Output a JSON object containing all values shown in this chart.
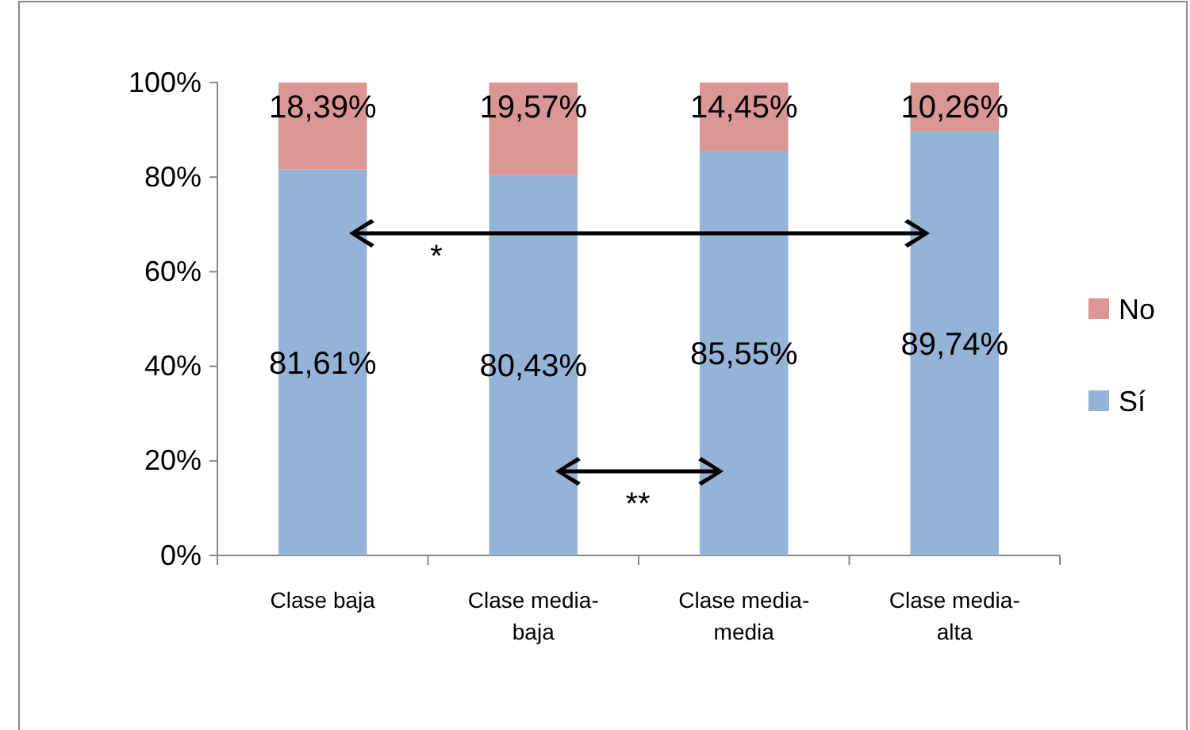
{
  "chart_data": {
    "type": "bar",
    "stacked": true,
    "categories": [
      "Clase baja",
      "Clase media-baja",
      "Clase media-media",
      "Clase media-alta"
    ],
    "series": [
      {
        "name": "Sí",
        "color": "#95b3d7",
        "values": [
          81.61,
          80.43,
          85.55,
          89.74
        ],
        "value_labels": [
          "81,61%",
          "80,43%",
          "85,55%",
          "89,74%"
        ]
      },
      {
        "name": "No",
        "color": "#d99694",
        "values": [
          18.39,
          19.57,
          14.45,
          10.26
        ],
        "value_labels": [
          "18,39%",
          "19,57%",
          "14,45%",
          "10,26%"
        ]
      }
    ],
    "ylim": [
      0,
      100
    ],
    "yticks": [
      {
        "value": 0,
        "label": "0%"
      },
      {
        "value": 20,
        "label": "20%"
      },
      {
        "value": 40,
        "label": "40%"
      },
      {
        "value": 60,
        "label": "60%"
      },
      {
        "value": 80,
        "label": "80%"
      },
      {
        "value": 100,
        "label": "100%"
      }
    ],
    "grid": false,
    "legend": "right",
    "annotations": [
      "*",
      "**"
    ]
  }
}
